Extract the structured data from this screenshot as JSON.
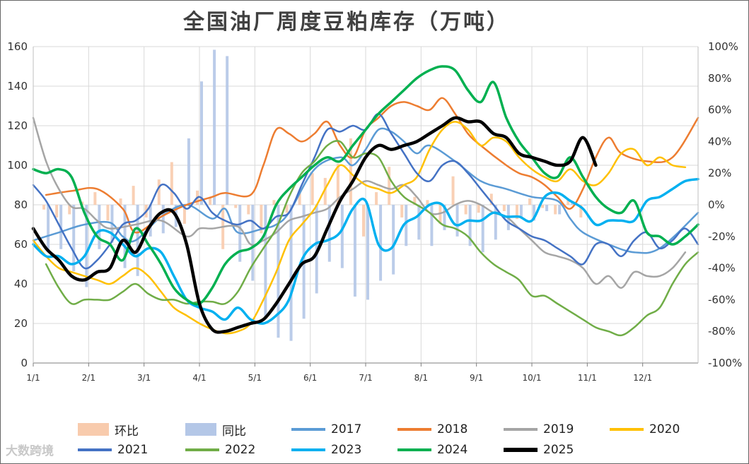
{
  "chart_data": {
    "type": "line",
    "title": "全国油厂周度豆粕库存（万吨）",
    "ylim": [
      0,
      160
    ],
    "y_ticks": [
      "0",
      "20",
      "40",
      "60",
      "80",
      "100",
      "120",
      "140",
      "160"
    ],
    "y2lim": [
      -100,
      100
    ],
    "y2_ticks": [
      "-100%",
      "-80%",
      "-60%",
      "-40%",
      "-20%",
      "0%",
      "20%",
      "40%",
      "60%",
      "80%",
      "100%"
    ],
    "x_ticks": [
      "1/1",
      "2/1",
      "3/1",
      "4/1",
      "5/1",
      "6/1",
      "7/1",
      "8/1",
      "9/1",
      "10/1",
      "11/1",
      "12/1"
    ],
    "xlim_weeks": [
      0,
      52
    ],
    "bar_series": [
      {
        "name": "环比",
        "color": "#f8cbad",
        "axis": "right",
        "x": [
          1,
          2,
          3,
          4,
          5,
          6,
          7,
          8,
          9,
          10,
          11,
          12,
          13,
          14,
          15,
          16,
          17,
          18,
          19,
          20,
          21,
          22,
          23,
          24,
          25,
          26,
          27,
          28,
          29,
          30,
          31,
          32,
          33,
          34,
          35,
          36,
          37,
          38,
          39,
          40,
          41,
          42,
          43
        ],
        "values": [
          -3,
          -8,
          -6,
          2,
          8,
          -10,
          4,
          12,
          -8,
          16,
          27,
          -12,
          9,
          5,
          -28,
          -2,
          -6,
          -18,
          3,
          -5,
          9,
          20,
          17,
          26,
          42,
          -20,
          8,
          24,
          -8,
          5,
          3,
          -12,
          18,
          -6,
          -5,
          7,
          -4,
          -9,
          4,
          -2,
          -6,
          3,
          -8
        ]
      },
      {
        "name": "同比",
        "color": "#b4c7e7",
        "axis": "right",
        "x": [
          1,
          2,
          3,
          4,
          5,
          6,
          7,
          8,
          9,
          10,
          11,
          12,
          13,
          14,
          15,
          16,
          17,
          18,
          19,
          20,
          21,
          22,
          23,
          24,
          25,
          26,
          27,
          28,
          29,
          30,
          31,
          32,
          33,
          34,
          35,
          36,
          37,
          38,
          39,
          40,
          41,
          42,
          43
        ],
        "values": [
          -30,
          -28,
          -42,
          -52,
          -28,
          -24,
          -40,
          -45,
          -20,
          -18,
          -14,
          42,
          78,
          98,
          94,
          -36,
          -48,
          -72,
          -84,
          -86,
          -72,
          -56,
          -36,
          -40,
          -58,
          -60,
          -48,
          -44,
          -26,
          -22,
          -26,
          -16,
          -20,
          -26,
          -30,
          -22,
          -16,
          -8,
          -10,
          -4,
          -6,
          2,
          0
        ]
      }
    ],
    "series": [
      {
        "name": "2017",
        "color": "#5b9bd5",
        "x": [
          0,
          2,
          4,
          6,
          7,
          8,
          10,
          12,
          14,
          15,
          16,
          18,
          19,
          20,
          22,
          24,
          25,
          26,
          27,
          28,
          29,
          30,
          31,
          33,
          35,
          37,
          39,
          41,
          42,
          43,
          45,
          47,
          49,
          52
        ],
        "values": [
          62,
          66,
          70,
          71,
          64,
          62,
          74,
          80,
          73,
          78,
          66,
          68,
          70,
          76,
          98,
          104,
          100,
          108,
          118,
          117,
          112,
          106,
          110,
          102,
          92,
          88,
          84,
          82,
          73,
          66,
          60,
          56,
          58,
          76
        ]
      },
      {
        "name": "2018",
        "color": "#ed7d31",
        "x": [
          1,
          3,
          5,
          7,
          8,
          10,
          12,
          14,
          15,
          17,
          18,
          19,
          20,
          21,
          22,
          23,
          24,
          25,
          26,
          27,
          28,
          29,
          30,
          31,
          32,
          33,
          34,
          35,
          37,
          38,
          39,
          40,
          41,
          42,
          43,
          44,
          45,
          46,
          48,
          50,
          52
        ],
        "values": [
          85,
          87,
          88,
          78,
          66,
          74,
          80,
          84,
          86,
          85,
          100,
          118,
          116,
          112,
          116,
          122,
          110,
          104,
          118,
          124,
          130,
          132,
          130,
          128,
          134,
          126,
          116,
          110,
          100,
          96,
          94,
          90,
          84,
          78,
          88,
          104,
          114,
          106,
          102,
          104,
          124
        ]
      },
      {
        "name": "2019",
        "color": "#a5a5a5",
        "x": [
          0,
          1,
          2,
          3,
          4,
          5,
          6,
          8,
          10,
          12,
          13,
          14,
          16,
          17,
          18,
          19,
          20,
          21,
          22,
          23,
          24,
          25,
          26,
          27,
          28,
          29,
          30,
          31,
          32,
          33,
          34,
          35,
          36,
          37,
          38,
          39,
          40,
          41,
          42,
          43,
          44,
          45,
          46,
          47,
          48,
          49,
          50,
          51
        ],
        "values": [
          124,
          102,
          88,
          79,
          78,
          72,
          68,
          70,
          72,
          64,
          68,
          68,
          69,
          60,
          62,
          66,
          72,
          74,
          76,
          78,
          84,
          88,
          92,
          90,
          88,
          90,
          84,
          76,
          76,
          80,
          82,
          80,
          76,
          74,
          68,
          62,
          56,
          54,
          52,
          48,
          40,
          44,
          38,
          46,
          44,
          44,
          48,
          56
        ]
      },
      {
        "name": "2020",
        "color": "#ffc000",
        "x": [
          0,
          1,
          2,
          3,
          5,
          6,
          7,
          8,
          9,
          10,
          11,
          12,
          13,
          14,
          15,
          16,
          17,
          18,
          19,
          20,
          21,
          22,
          23,
          24,
          25,
          26,
          27,
          28,
          29,
          30,
          31,
          32,
          33,
          34,
          35,
          36,
          37,
          38,
          39,
          40,
          41,
          42,
          43,
          44,
          45,
          46,
          47,
          48,
          49,
          50,
          51
        ],
        "values": [
          62,
          54,
          48,
          46,
          42,
          40,
          44,
          48,
          44,
          36,
          28,
          24,
          20,
          17,
          15,
          16,
          20,
          32,
          46,
          62,
          70,
          78,
          90,
          100,
          95,
          90,
          88,
          86,
          90,
          94,
          108,
          118,
          122,
          118,
          110,
          114,
          112,
          104,
          98,
          94,
          92,
          98,
          92,
          90,
          96,
          106,
          108,
          100,
          104,
          100,
          99
        ]
      },
      {
        "name": "2021",
        "color": "#4472c4",
        "x": [
          0,
          1,
          2,
          3,
          4,
          5,
          6,
          7,
          8,
          9,
          10,
          11,
          12,
          13,
          14,
          15,
          16,
          17,
          18,
          19,
          20,
          21,
          22,
          23,
          24,
          25,
          26,
          27,
          28,
          29,
          30,
          31,
          32,
          33,
          34,
          35,
          36,
          37,
          38,
          39,
          40,
          41,
          42,
          43,
          44,
          45,
          46,
          47,
          48,
          49,
          50,
          51,
          52
        ],
        "values": [
          90,
          82,
          70,
          58,
          48,
          52,
          60,
          70,
          72,
          78,
          90,
          86,
          78,
          84,
          76,
          72,
          70,
          72,
          68,
          74,
          76,
          90,
          104,
          118,
          117,
          120,
          118,
          126,
          116,
          106,
          96,
          92,
          100,
          102,
          96,
          88,
          80,
          72,
          68,
          64,
          62,
          58,
          54,
          50,
          60,
          60,
          54,
          62,
          66,
          58,
          62,
          68,
          60
        ]
      },
      {
        "name": "2022",
        "color": "#70ad47",
        "x": [
          1,
          2,
          3,
          4,
          5,
          6,
          7,
          8,
          9,
          10,
          11,
          12,
          13,
          14,
          15,
          16,
          17,
          18,
          19,
          20,
          21,
          22,
          23,
          24,
          25,
          26,
          27,
          28,
          29,
          30,
          31,
          32,
          33,
          34,
          35,
          36,
          37,
          38,
          39,
          40,
          41,
          42,
          43,
          44,
          45,
          46,
          47,
          48,
          49,
          50,
          51,
          52
        ],
        "values": [
          50,
          38,
          30,
          32,
          32,
          32,
          36,
          40,
          35,
          32,
          32,
          30,
          31,
          31,
          30,
          36,
          48,
          58,
          68,
          84,
          96,
          102,
          110,
          112,
          104,
          106,
          104,
          92,
          84,
          80,
          76,
          70,
          68,
          64,
          56,
          50,
          46,
          42,
          34,
          34,
          30,
          26,
          22,
          18,
          16,
          14,
          18,
          24,
          28,
          40,
          50,
          56
        ]
      },
      {
        "name": "2023",
        "color": "#00b0f0",
        "x": [
          0,
          1,
          2,
          3,
          4,
          5,
          6,
          7,
          8,
          9,
          10,
          11,
          12,
          13,
          14,
          15,
          16,
          17,
          18,
          19,
          20,
          21,
          22,
          23,
          24,
          25,
          26,
          27,
          28,
          29,
          30,
          31,
          32,
          33,
          34,
          35,
          36,
          37,
          38,
          39,
          40,
          41,
          42,
          43,
          44,
          45,
          46,
          47,
          48,
          49,
          50,
          51,
          52
        ],
        "values": [
          60,
          54,
          54,
          50,
          54,
          66,
          66,
          60,
          54,
          58,
          56,
          44,
          32,
          28,
          26,
          22,
          28,
          22,
          20,
          24,
          32,
          52,
          60,
          62,
          66,
          78,
          82,
          60,
          58,
          70,
          74,
          80,
          80,
          70,
          72,
          72,
          76,
          74,
          74,
          72,
          84,
          86,
          82,
          78,
          70,
          72,
          72,
          72,
          82,
          84,
          88,
          92,
          93
        ]
      },
      {
        "name": "2024",
        "color": "#00b050",
        "x": [
          0,
          1,
          2,
          3,
          4,
          5,
          6,
          7,
          8,
          9,
          10,
          11,
          12,
          13,
          14,
          15,
          16,
          17,
          18,
          19,
          20,
          21,
          22,
          23,
          24,
          25,
          26,
          27,
          28,
          29,
          30,
          31,
          32,
          33,
          34,
          35,
          36,
          37,
          38,
          39,
          40,
          41,
          42,
          43,
          44,
          45,
          46,
          47,
          48,
          49,
          50,
          51,
          52
        ],
        "values": [
          98,
          96,
          98,
          94,
          76,
          64,
          60,
          52,
          68,
          60,
          50,
          38,
          32,
          30,
          38,
          50,
          56,
          58,
          64,
          80,
          88,
          94,
          100,
          104,
          102,
          110,
          118,
          126,
          132,
          138,
          144,
          148,
          150,
          148,
          138,
          132,
          142,
          124,
          112,
          104,
          96,
          94,
          104,
          94,
          84,
          78,
          76,
          82,
          66,
          64,
          60,
          64,
          70
        ]
      },
      {
        "name": "2025",
        "color": "#000000",
        "x": [
          0,
          1,
          2,
          3,
          4,
          5,
          6,
          7,
          8,
          9,
          10,
          11,
          12,
          13,
          14,
          15,
          16,
          17,
          18,
          19,
          20,
          21,
          22,
          23,
          24,
          25,
          26,
          27,
          28,
          29,
          30,
          31,
          32,
          33,
          34,
          35,
          36,
          37,
          38,
          39,
          40,
          41,
          42,
          43,
          44
        ],
        "values": [
          68,
          58,
          52,
          44,
          42,
          46,
          48,
          62,
          56,
          68,
          76,
          76,
          60,
          30,
          17,
          16,
          18,
          20,
          22,
          30,
          40,
          50,
          54,
          68,
          82,
          92,
          104,
          110,
          108,
          110,
          112,
          116,
          120,
          124,
          122,
          122,
          116,
          114,
          106,
          104,
          102,
          100,
          102,
          114,
          100
        ]
      }
    ]
  },
  "watermark": "大数跨境"
}
